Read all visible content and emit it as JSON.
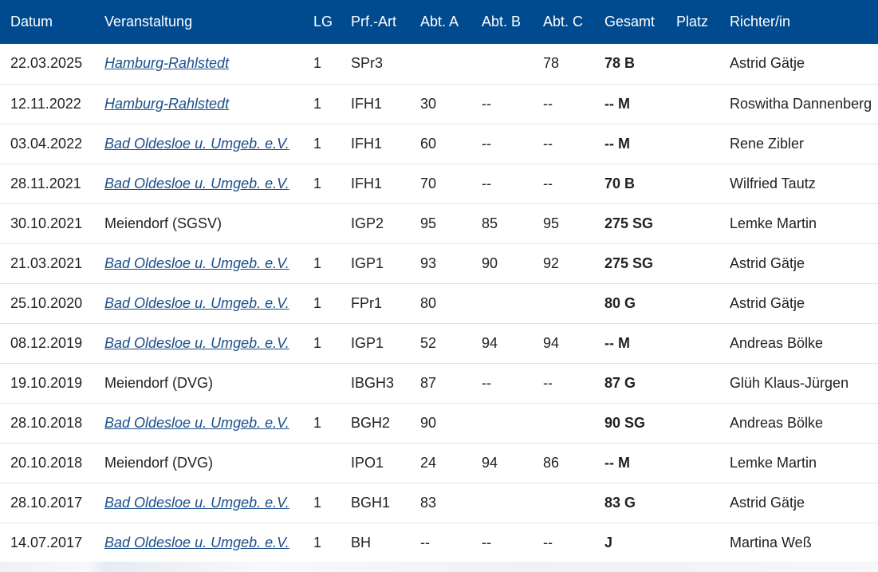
{
  "table": {
    "headers": {
      "date": "Datum",
      "event": "Veranstaltung",
      "lg": "LG",
      "type": "Prf.-Art",
      "a": "Abt. A",
      "b": "Abt. B",
      "c": "Abt. C",
      "total": "Gesamt",
      "place": "Platz",
      "judge": "Richter/in"
    },
    "rows": [
      {
        "date": "22.03.2025",
        "event": "Hamburg-Rahlstedt",
        "link": true,
        "lg": "1",
        "type": "SPr3",
        "a": "",
        "b": "",
        "c": "78",
        "total": "78 B",
        "place": "",
        "judge": "Astrid Gätje"
      },
      {
        "date": "12.11.2022",
        "event": "Hamburg-Rahlstedt",
        "link": true,
        "lg": "1",
        "type": "IFH1",
        "a": "30",
        "b": "--",
        "c": "--",
        "total": "-- M",
        "place": "",
        "judge": "Roswitha Dannenberg"
      },
      {
        "date": "03.04.2022",
        "event": "Bad Oldesloe u. Umgeb. e.V.",
        "link": true,
        "lg": "1",
        "type": "IFH1",
        "a": "60",
        "b": "--",
        "c": "--",
        "total": "-- M",
        "place": "",
        "judge": "Rene Zibler"
      },
      {
        "date": "28.11.2021",
        "event": "Bad Oldesloe u. Umgeb. e.V.",
        "link": true,
        "lg": "1",
        "type": "IFH1",
        "a": "70",
        "b": "--",
        "c": "--",
        "total": "70 B",
        "place": "",
        "judge": "Wilfried Tautz"
      },
      {
        "date": "30.10.2021",
        "event": "Meiendorf (SGSV)",
        "link": false,
        "lg": "",
        "type": "IGP2",
        "a": "95",
        "b": "85",
        "c": "95",
        "total": "275 SG",
        "place": "",
        "judge": "Lemke Martin"
      },
      {
        "date": "21.03.2021",
        "event": "Bad Oldesloe u. Umgeb. e.V.",
        "link": true,
        "lg": "1",
        "type": "IGP1",
        "a": "93",
        "b": "90",
        "c": "92",
        "total": "275 SG",
        "place": "",
        "judge": "Astrid Gätje"
      },
      {
        "date": "25.10.2020",
        "event": "Bad Oldesloe u. Umgeb. e.V.",
        "link": true,
        "lg": "1",
        "type": "FPr1",
        "a": "80",
        "b": "",
        "c": "",
        "total": "80 G",
        "place": "",
        "judge": "Astrid Gätje"
      },
      {
        "date": "08.12.2019",
        "event": "Bad Oldesloe u. Umgeb. e.V.",
        "link": true,
        "lg": "1",
        "type": "IGP1",
        "a": "52",
        "b": "94",
        "c": "94",
        "total": "-- M",
        "place": "",
        "judge": "Andreas Bölke"
      },
      {
        "date": "19.10.2019",
        "event": "Meiendorf (DVG)",
        "link": false,
        "lg": "",
        "type": "IBGH3",
        "a": "87",
        "b": "--",
        "c": "--",
        "total": "87 G",
        "place": "",
        "judge": "Glüh Klaus-Jürgen"
      },
      {
        "date": "28.10.2018",
        "event": "Bad Oldesloe u. Umgeb. e.V.",
        "link": true,
        "lg": "1",
        "type": "BGH2",
        "a": "90",
        "b": "",
        "c": "",
        "total": "90 SG",
        "place": "",
        "judge": "Andreas Bölke"
      },
      {
        "date": "20.10.2018",
        "event": "Meiendorf (DVG)",
        "link": false,
        "lg": "",
        "type": "IPO1",
        "a": "24",
        "b": "94",
        "c": "86",
        "total": "-- M",
        "place": "",
        "judge": "Lemke Martin"
      },
      {
        "date": "28.10.2017",
        "event": "Bad Oldesloe u. Umgeb. e.V.",
        "link": true,
        "lg": "1",
        "type": "BGH1",
        "a": "83",
        "b": "",
        "c": "",
        "total": "83 G",
        "place": "",
        "judge": "Astrid Gätje"
      },
      {
        "date": "14.07.2017",
        "event": "Bad Oldesloe u. Umgeb. e.V.",
        "link": true,
        "lg": "1",
        "type": "BH",
        "a": "--",
        "b": "--",
        "c": "--",
        "total": "J",
        "place": "",
        "judge": "Martina Weß"
      }
    ]
  }
}
